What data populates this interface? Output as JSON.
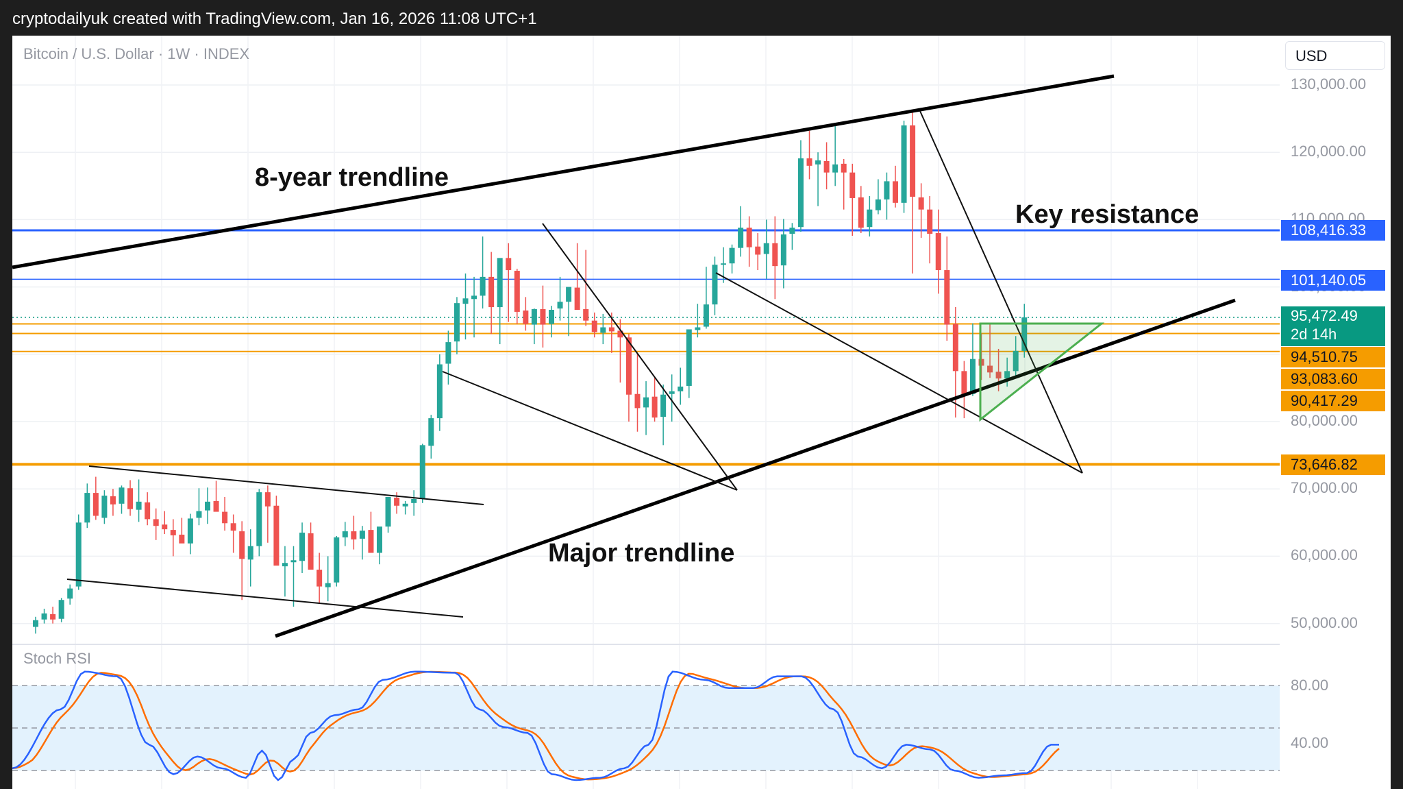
{
  "header": {
    "attribution": "cryptodailyuk created with TradingView.com, Jan 16, 2026 11:08 UTC+1"
  },
  "symbol": {
    "title": "Bitcoin / U.S. Dollar · 1W · INDEX"
  },
  "currency": "USD",
  "indicator": {
    "name": "Stoch RSI",
    "levels": [
      "80.00",
      "40.00"
    ]
  },
  "annotations": {
    "eight_year": "8-year trendline",
    "key_resistance": "Key resistance",
    "major": "Major trendline"
  },
  "price_labels": {
    "last_price": "95,472.49",
    "countdown": "2d 14h",
    "blue_high": "108,416.33",
    "blue_low": "101,140.05",
    "orange_1": "94,510.75",
    "orange_2": "93,083.60",
    "orange_3": "90,417.29",
    "orange_support": "73,646.82"
  },
  "colors": {
    "up": "#26a69a",
    "down": "#ef5350",
    "blue_level": "#2962ff",
    "orange_level": "#f59c00",
    "trend": "#000000",
    "triangle": "#4caf50",
    "stoch_k": "#2962ff",
    "stoch_d": "#ff6d00",
    "stoch_band": "#e3f2fd"
  },
  "chart_data": {
    "type": "candlestick",
    "title": "Bitcoin / U.S. Dollar · 1W · INDEX",
    "y_axis": {
      "ticks": [
        130000,
        120000,
        110000,
        100000,
        90000,
        80000,
        70000,
        60000,
        50000
      ],
      "tick_labels": [
        "130,000.00",
        "120,000.00",
        "110,000.00",
        "100,000.00",
        "90,000.00",
        "80,000.00",
        "70,000.00",
        "60,000.00",
        "50,000.00"
      ],
      "range": [
        47000,
        133000
      ]
    },
    "grid": true,
    "horizontal_levels": [
      108416.33,
      101140.05,
      94510.75,
      93083.6,
      90417.29,
      73646.82
    ],
    "last_price": 95472.49,
    "weekly_ohlc": [
      [
        49500,
        51000,
        48500,
        50500
      ],
      [
        50600,
        52200,
        50000,
        51500
      ],
      [
        51400,
        52500,
        50000,
        50600
      ],
      [
        50700,
        53800,
        50200,
        53500
      ],
      [
        53700,
        55800,
        52800,
        55200
      ],
      [
        55500,
        66200,
        55000,
        65000
      ],
      [
        65000,
        70800,
        64200,
        69400
      ],
      [
        69400,
        71800,
        65400,
        66000
      ],
      [
        65700,
        69800,
        64800,
        69000
      ],
      [
        68900,
        70000,
        66000,
        67700
      ],
      [
        67800,
        70500,
        66300,
        70200
      ],
      [
        70100,
        71300,
        66000,
        67000
      ],
      [
        66900,
        71400,
        65100,
        68100
      ],
      [
        68000,
        69500,
        64600,
        65500
      ],
      [
        65500,
        67100,
        62400,
        64500
      ],
      [
        64700,
        66700,
        63300,
        64000
      ],
      [
        63900,
        65500,
        60000,
        63100
      ],
      [
        63200,
        65700,
        62200,
        61900
      ],
      [
        61900,
        66300,
        60300,
        65600
      ],
      [
        65700,
        70100,
        64600,
        66700
      ],
      [
        66800,
        70200,
        64800,
        68100
      ],
      [
        68200,
        71200,
        66800,
        66600
      ],
      [
        66600,
        68800,
        63800,
        64900
      ],
      [
        64900,
        66200,
        60500,
        63800
      ],
      [
        63700,
        65200,
        53500,
        59600
      ],
      [
        59500,
        64000,
        55500,
        61500
      ],
      [
        61500,
        70000,
        60000,
        69500
      ],
      [
        69500,
        70500,
        62000,
        67400
      ],
      [
        67500,
        69000,
        60500,
        58600
      ],
      [
        58500,
        61500,
        54000,
        59000
      ],
      [
        59100,
        61500,
        52500,
        59400
      ],
      [
        59300,
        65000,
        57500,
        63500
      ],
      [
        63400,
        65000,
        60000,
        58000
      ],
      [
        58000,
        60500,
        53000,
        55500
      ],
      [
        55400,
        60000,
        53300,
        56000
      ],
      [
        56100,
        63000,
        55500,
        62800
      ],
      [
        62800,
        65100,
        61500,
        63700
      ],
      [
        63700,
        66000,
        61000,
        62500
      ],
      [
        62600,
        64500,
        59500,
        63800
      ],
      [
        63900,
        66600,
        61000,
        60500
      ],
      [
        60500,
        62000,
        58800,
        64400
      ],
      [
        64400,
        68500,
        63500,
        68800
      ],
      [
        68700,
        69500,
        66300,
        67500
      ],
      [
        67400,
        68200,
        66200,
        67800
      ],
      [
        67900,
        69800,
        66000,
        68500
      ],
      [
        68500,
        76700,
        67900,
        76500
      ],
      [
        76400,
        81000,
        74500,
        80500
      ],
      [
        80500,
        90000,
        78600,
        88500
      ],
      [
        88600,
        93500,
        85500,
        91800
      ],
      [
        91900,
        98500,
        90000,
        97600
      ],
      [
        97500,
        102000,
        92200,
        98300
      ],
      [
        98200,
        101500,
        92500,
        98700
      ],
      [
        98700,
        107500,
        96800,
        101500
      ],
      [
        101500,
        105200,
        93000,
        97000
      ],
      [
        97000,
        104000,
        91500,
        104300
      ],
      [
        104300,
        106500,
        94800,
        102500
      ],
      [
        102400,
        102700,
        94500,
        96300
      ],
      [
        96500,
        98500,
        93500,
        94500
      ],
      [
        94400,
        96800,
        91500,
        96700
      ],
      [
        96700,
        100200,
        91000,
        94400
      ],
      [
        94500,
        97200,
        92500,
        96600
      ],
      [
        96800,
        101500,
        95000,
        97800
      ],
      [
        97800,
        99000,
        92700,
        100000
      ],
      [
        99900,
        106500,
        97500,
        96600
      ],
      [
        96700,
        105500,
        94200,
        95000
      ],
      [
        95000,
        96200,
        92500,
        93300
      ],
      [
        93200,
        96000,
        91500,
        94000
      ],
      [
        94000,
        96200,
        90200,
        93400
      ],
      [
        93500,
        95200,
        85800,
        92500
      ],
      [
        92500,
        93000,
        80000,
        84000
      ],
      [
        84100,
        90000,
        78500,
        82000
      ],
      [
        82100,
        86000,
        78000,
        83600
      ],
      [
        83700,
        86500,
        80000,
        80600
      ],
      [
        80700,
        85500,
        76500,
        84000
      ],
      [
        84100,
        87000,
        80000,
        84500
      ],
      [
        84500,
        88000,
        82500,
        85200
      ],
      [
        85300,
        93500,
        83500,
        93700
      ],
      [
        93600,
        97500,
        92500,
        94000
      ],
      [
        94100,
        103000,
        93800,
        97400
      ],
      [
        97400,
        104500,
        95800,
        103300
      ],
      [
        103400,
        105900,
        100600,
        103500
      ],
      [
        103500,
        106300,
        102000,
        105800
      ],
      [
        105800,
        112000,
        104500,
        108800
      ],
      [
        108800,
        110500,
        103000,
        105900
      ],
      [
        106000,
        108000,
        102500,
        104800
      ],
      [
        104900,
        110000,
        101200,
        106500
      ],
      [
        106500,
        110500,
        98200,
        103100
      ],
      [
        103200,
        110100,
        99800,
        107800
      ],
      [
        107900,
        109500,
        105500,
        108800
      ],
      [
        108900,
        121800,
        108200,
        119100
      ],
      [
        119100,
        123200,
        116000,
        118000
      ],
      [
        118200,
        120000,
        112000,
        118800
      ],
      [
        118700,
        121500,
        114500,
        117000
      ],
      [
        117000,
        124400,
        115000,
        118200
      ],
      [
        118300,
        119000,
        111500,
        117000
      ],
      [
        117000,
        118300,
        107600,
        113200
      ],
      [
        113300,
        115000,
        108000,
        108800
      ],
      [
        108900,
        113500,
        107500,
        111500
      ],
      [
        111400,
        116000,
        110800,
        113000
      ],
      [
        113000,
        117000,
        110000,
        115700
      ],
      [
        115700,
        118000,
        111800,
        112500
      ],
      [
        112500,
        124700,
        111000,
        124000
      ],
      [
        124000,
        126300,
        102000,
        113400
      ],
      [
        113300,
        115400,
        107300,
        111500
      ],
      [
        111500,
        113500,
        103500,
        107900
      ],
      [
        108000,
        111500,
        99000,
        102500
      ],
      [
        102500,
        107500,
        92000,
        94400
      ],
      [
        94500,
        97000,
        80600,
        87500
      ],
      [
        87500,
        89000,
        80500,
        84000
      ],
      [
        84100,
        94600,
        83800,
        89300
      ],
      [
        89300,
        93100,
        86200,
        88300
      ],
      [
        88300,
        94600,
        86500,
        87300
      ],
      [
        87400,
        90800,
        84500,
        86400
      ],
      [
        86400,
        89500,
        85200,
        87500
      ],
      [
        87500,
        92700,
        86700,
        90500
      ],
      [
        90500,
        97500,
        89500,
        95472
      ]
    ],
    "stoch_rsi": {
      "levels": [
        80,
        40
      ],
      "k_series": "oscillating, approx. 90 at peaks and 0 at troughs; last value ~30, rising",
      "d_series": "smoothed K; last value ~15"
    }
  }
}
